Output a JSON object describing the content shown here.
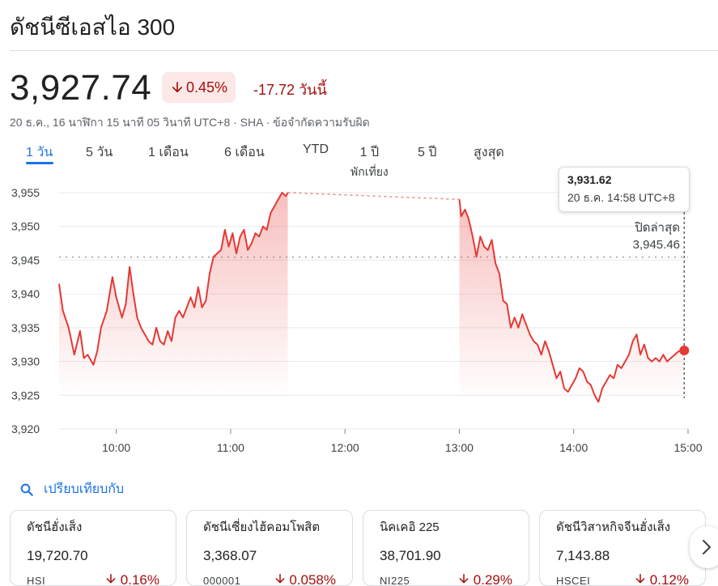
{
  "header": {
    "title": "ดัชนีซีเอสไอ 300",
    "price": "3,927.74",
    "change_pct": "0.45%",
    "change_abs": "-17.72 วันนี้",
    "meta": "20 ธ.ค., 16 นาฬิกา 15 นาที 05 วินาที UTC+8 · SHA · ข้อจำกัดความรับผิด"
  },
  "ranges": [
    {
      "label": "1 วัน",
      "sub": ""
    },
    {
      "label": "5 วัน",
      "sub": ""
    },
    {
      "label": "1 เดือน",
      "sub": ""
    },
    {
      "label": "6 เดือน",
      "sub": ""
    },
    {
      "label": "YTD",
      "sub": ""
    },
    {
      "label": "1 ปี",
      "sub": "พักเที่ยง"
    },
    {
      "label": "5 ปี",
      "sub": ""
    },
    {
      "label": "สูงสุด",
      "sub": ""
    }
  ],
  "tooltip": {
    "value": "3,931.62",
    "time": "20 ธ.ค. 14:58 UTC+8"
  },
  "prev_close": {
    "label": "ปิดล่าสุด",
    "value": "3,945.46"
  },
  "compare": {
    "label": "เปรียบเทียบกับ"
  },
  "cards": [
    {
      "name": "ดัชนีฮั่งเส็ง",
      "value": "19,720.70",
      "symbol": "HSI",
      "change": "0.16%"
    },
    {
      "name": "ดัชนีเซี่ยงไฮ้คอมโพสิต",
      "value": "3,368.07",
      "symbol": "000001",
      "change": "0.058%"
    },
    {
      "name": "นิคเคอิ 225",
      "value": "38,701.90",
      "symbol": "NI225",
      "change": "0.29%"
    },
    {
      "name": "ดัชนีวิสาหกิจจีนฮั่งเส็ง",
      "value": "7,143.88",
      "symbol": "HSCEI",
      "change": "0.12%"
    }
  ],
  "colors": {
    "negative": "#a50e0e",
    "line": "#e53935",
    "accent": "#1a73e8"
  },
  "chart_data": {
    "type": "line",
    "ylim": [
      3920,
      3955
    ],
    "yticks": [
      3955,
      3950,
      3945,
      3940,
      3935,
      3930,
      3925,
      3920
    ],
    "ytick_labels": [
      "3,955",
      "3,950",
      "3,945",
      "3,940",
      "3,935",
      "3,930",
      "3,925",
      "3,920"
    ],
    "xlim": [
      "09:30",
      "15:00"
    ],
    "xticks": [
      "10:00",
      "11:00",
      "12:00",
      "13:00",
      "14:00",
      "15:00"
    ],
    "previous_close": 3945.46,
    "lunch_break": [
      "11:30",
      "13:00"
    ],
    "series": [
      {
        "segments": [
          {
            "x": [
              "09:30",
              "09:32",
              "09:35",
              "09:38",
              "09:41",
              "09:43",
              "09:45",
              "09:48",
              "09:50",
              "09:52",
              "09:55",
              "09:58",
              "10:00",
              "10:03",
              "10:05",
              "10:07",
              "10:09",
              "10:11",
              "10:13",
              "10:15",
              "10:17",
              "10:19",
              "10:21",
              "10:23",
              "10:25",
              "10:27",
              "10:29",
              "10:31",
              "10:33",
              "10:35",
              "10:37",
              "10:39",
              "10:41",
              "10:43",
              "10:45",
              "10:47",
              "10:49",
              "10:51",
              "10:53",
              "10:55",
              "10:57",
              "10:59",
              "11:01",
              "11:03",
              "11:05",
              "11:07",
              "11:09",
              "11:11",
              "11:13",
              "11:15",
              "11:17",
              "11:19",
              "11:21",
              "11:23",
              "11:25",
              "11:27",
              "11:29",
              "11:30"
            ],
            "y": [
              3941.5,
              3937.5,
              3935.0,
              3931.0,
              3934.5,
              3930.5,
              3931.0,
              3929.5,
              3931.5,
              3935.0,
              3937.5,
              3942.5,
              3939.5,
              3936.5,
              3938.5,
              3944.0,
              3940.0,
              3936.5,
              3935.0,
              3934.0,
              3933.0,
              3932.5,
              3935.0,
              3933.0,
              3932.5,
              3934.5,
              3933.0,
              3936.5,
              3937.5,
              3936.5,
              3938.0,
              3939.5,
              3938.0,
              3941.0,
              3938.0,
              3939.0,
              3943.0,
              3945.5,
              3946.0,
              3946.5,
              3949.5,
              3947.0,
              3949.0,
              3946.0,
              3948.5,
              3949.5,
              3946.5,
              3947.5,
              3949.0,
              3948.5,
              3950.0,
              3949.5,
              3952.0,
              3953.0,
              3954.0,
              3955.0,
              3954.5,
              3955.0
            ]
          },
          {
            "x": [
              "13:00",
              "13:01",
              "13:03",
              "13:05",
              "13:07",
              "13:09",
              "13:11",
              "13:13",
              "13:15",
              "13:17",
              "13:19",
              "13:21",
              "13:23",
              "13:25",
              "13:27",
              "13:29",
              "13:31",
              "13:33",
              "13:35",
              "13:37",
              "13:39",
              "13:41",
              "13:43",
              "13:45",
              "13:47",
              "13:49",
              "13:51",
              "13:53",
              "13:55",
              "13:57",
              "13:59",
              "14:01",
              "14:03",
              "14:05",
              "14:07",
              "14:09",
              "14:11",
              "14:13",
              "14:15",
              "14:17",
              "14:19",
              "14:21",
              "14:23",
              "14:25",
              "14:27",
              "14:29",
              "14:31",
              "14:33",
              "14:35",
              "14:37",
              "14:39",
              "14:41",
              "14:43",
              "14:45",
              "14:47",
              "14:49",
              "14:51",
              "14:53",
              "14:55",
              "14:57",
              "14:58"
            ],
            "y": [
              3954.0,
              3951.5,
              3952.5,
              3951.0,
              3948.5,
              3945.5,
              3948.5,
              3947.0,
              3946.5,
              3948.0,
              3944.5,
              3943.0,
              3939.0,
              3938.5,
              3935.0,
              3936.5,
              3935.0,
              3937.0,
              3935.5,
              3934.0,
              3933.0,
              3932.5,
              3931.0,
              3933.0,
              3931.5,
              3929.5,
              3927.5,
              3928.5,
              3926.0,
              3925.5,
              3926.5,
              3927.5,
              3929.0,
              3928.5,
              3927.0,
              3926.5,
              3925.0,
              3924.0,
              3926.0,
              3927.0,
              3928.0,
              3927.5,
              3929.5,
              3929.0,
              3930.0,
              3931.0,
              3933.0,
              3934.0,
              3931.0,
              3932.5,
              3930.5,
              3930.0,
              3930.5,
              3930.0,
              3931.0,
              3930.0,
              3930.5,
              3931.0,
              3931.5,
              3931.62,
              3931.62
            ]
          }
        ]
      }
    ]
  }
}
